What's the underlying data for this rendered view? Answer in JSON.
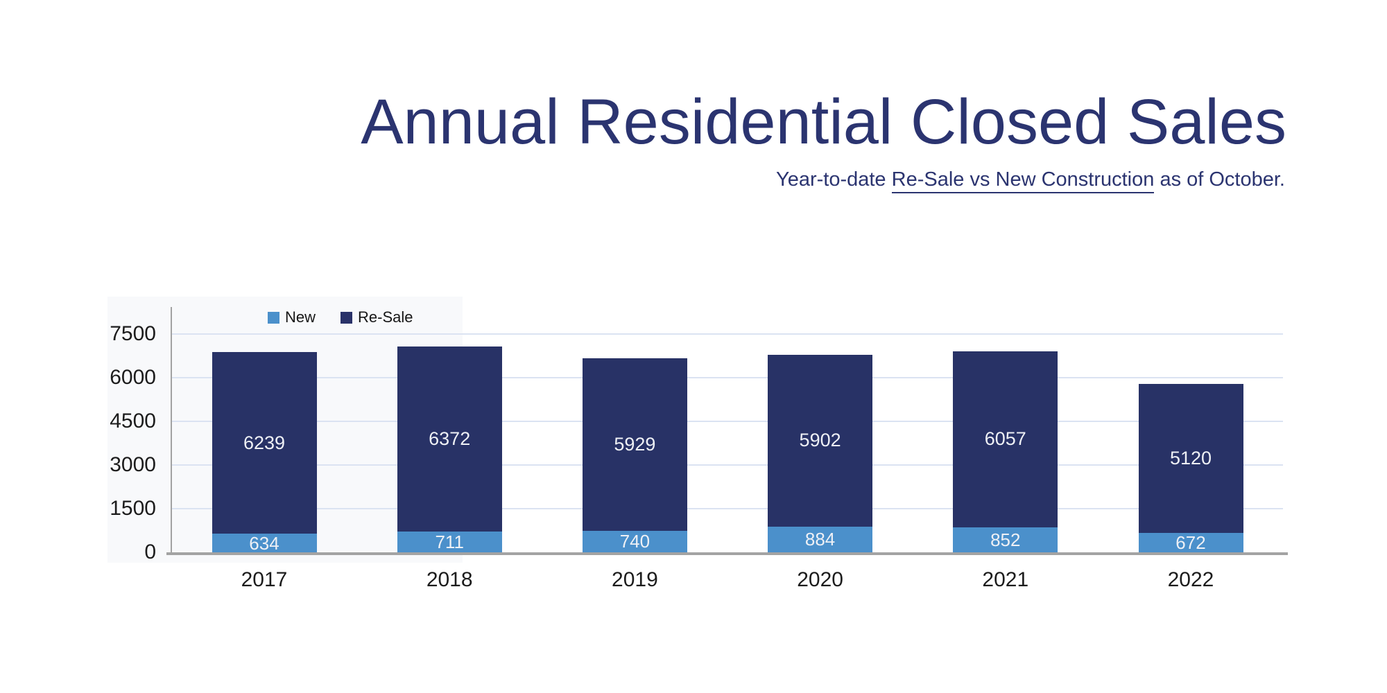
{
  "title": "Annual Residential Closed Sales",
  "subtitle": {
    "prefix": "Year-to-date ",
    "underlined": "Re-Sale vs New Construction",
    "suffix": " as of October."
  },
  "legend": [
    {
      "label": "New",
      "color": "#4b90cb"
    },
    {
      "label": "Re-Sale",
      "color": "#2a3269"
    }
  ],
  "colors": {
    "title_text": "#2b3470",
    "bar_new": "#4b90cb",
    "bar_resale": "#283266",
    "gridline": "#dbe3f2",
    "axis_line": "#a3a3a3",
    "tick_text": "#1c1c1c",
    "bar_label_text": "#eef0f5"
  },
  "chart_data": {
    "type": "bar",
    "stacked": true,
    "title": "Annual Residential Closed Sales",
    "subtitle": "Year-to-date Re-Sale vs New Construction as of October.",
    "categories": [
      "2017",
      "2018",
      "2019",
      "2020",
      "2021",
      "2022"
    ],
    "series": [
      {
        "name": "New",
        "values": [
          634,
          711,
          740,
          884,
          852,
          672
        ]
      },
      {
        "name": "Re-Sale",
        "values": [
          6239,
          6372,
          5929,
          5902,
          6057,
          5120
        ]
      }
    ],
    "totals": [
      6873,
      7083,
      6669,
      6786,
      6909,
      5792
    ],
    "xlabel": "",
    "ylabel": "",
    "ylim": [
      0,
      7500
    ],
    "yticks": [
      0,
      1500,
      3000,
      4500,
      6000,
      7500
    ],
    "grid": true,
    "legend_position": "top"
  }
}
